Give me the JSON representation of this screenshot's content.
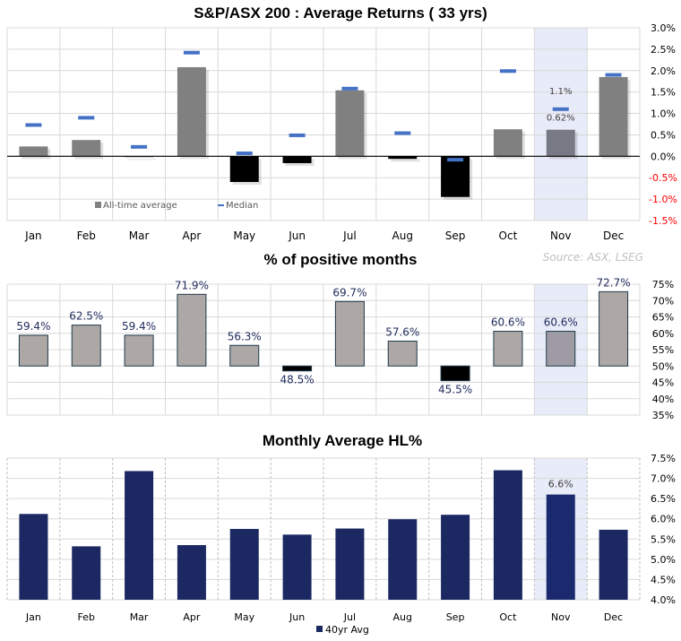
{
  "chart_data": [
    {
      "type": "bar",
      "title": "S&P/ASX 200 : Average Returns ( 33 yrs)",
      "categories": [
        "Jan",
        "Feb",
        "Mar",
        "Apr",
        "May",
        "Jun",
        "Jul",
        "Aug",
        "Sep",
        "Oct",
        "Nov",
        "Dec"
      ],
      "series": [
        {
          "name": "All-time average",
          "values": [
            0.23,
            0.38,
            0.0,
            2.08,
            -0.6,
            -0.16,
            1.54,
            -0.06,
            -0.95,
            0.63,
            0.62,
            1.85
          ]
        },
        {
          "name": "Median",
          "values": [
            0.73,
            0.9,
            0.22,
            2.42,
            0.07,
            0.49,
            1.58,
            0.54,
            -0.08,
            1.99,
            1.1,
            1.9
          ]
        }
      ],
      "data_labels": {
        "Nov": {
          "average": "0.62%",
          "median": "1.1%"
        }
      },
      "highlight": "Nov",
      "ylim": [
        -1.5,
        3.0
      ],
      "yticks": [
        "3.0%",
        "2.5%",
        "2.0%",
        "1.5%",
        "1.0%",
        "0.5%",
        "0.0%",
        "-0.5%",
        "-1.0%",
        "-1.5%"
      ],
      "grid": true,
      "legend": "bottom",
      "colors": {
        "positive": "#808080",
        "negative": "#000000",
        "median": "#4472C4",
        "highlight": "#E8EBF8",
        "negative_tick": "#FF0000"
      }
    },
    {
      "type": "bar",
      "title": "% of positive months",
      "annotation": "Source: ASX, LSEG",
      "categories": [
        "Jan",
        "Feb",
        "Mar",
        "Apr",
        "May",
        "Jun",
        "Jul",
        "Aug",
        "Sep",
        "Oct",
        "Nov",
        "Dec"
      ],
      "values": [
        59.4,
        62.5,
        59.4,
        71.9,
        56.3,
        48.5,
        69.7,
        57.6,
        45.5,
        60.6,
        60.6,
        72.7
      ],
      "labels": [
        "59.4%",
        "62.5%",
        "59.4%",
        "71.9%",
        "56.3%",
        "48.5%",
        "69.7%",
        "57.6%",
        "45.5%",
        "60.6%",
        "60.6%",
        "72.7%"
      ],
      "baseline": 50,
      "highlight": "Nov",
      "ylim": [
        35,
        75
      ],
      "yticks": [
        "75%",
        "70%",
        "65%",
        "60%",
        "55%",
        "50%",
        "45%",
        "40%",
        "35%"
      ],
      "grid": true,
      "colors": {
        "above": "#ADA7A5",
        "below": "#000000",
        "label": "#1F2A5C"
      }
    },
    {
      "type": "bar",
      "title": "Monthly Average HL%",
      "categories": [
        "Jan",
        "Feb",
        "Mar",
        "Apr",
        "May",
        "Jun",
        "Jul",
        "Aug",
        "Sep",
        "Oct",
        "Nov",
        "Dec"
      ],
      "series": [
        {
          "name": "40yr Avg",
          "values": [
            6.12,
            5.32,
            7.18,
            5.35,
            5.75,
            5.61,
            5.76,
            5.99,
            6.1,
            7.2,
            6.6,
            5.73
          ]
        }
      ],
      "data_labels": {
        "Nov": "6.6%"
      },
      "highlight": "Nov",
      "ylim": [
        4.0,
        7.5
      ],
      "yticks": [
        "7.5%",
        "7.0%",
        "6.5%",
        "6.0%",
        "5.5%",
        "5.0%",
        "4.5%",
        "4.0%"
      ],
      "grid": true,
      "legend": "bottom",
      "colors": {
        "bar": "#1B2862",
        "highlight_bar": "#1B2A6E"
      }
    }
  ]
}
